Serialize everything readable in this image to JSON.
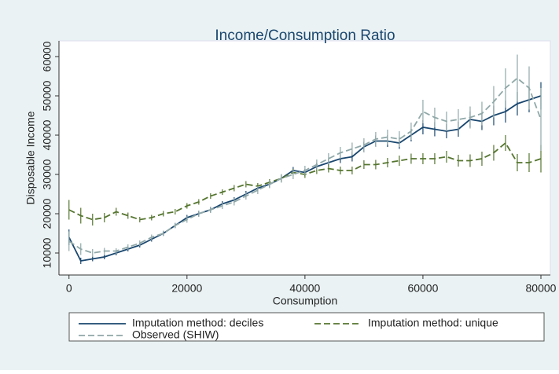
{
  "chart_data": {
    "type": "line",
    "title": "Income/Consumption Ratio",
    "x_label": "Consumption",
    "y_label": "Disposable Income",
    "x": [
      0,
      2000,
      4000,
      6000,
      8000,
      10000,
      12000,
      14000,
      16000,
      18000,
      20000,
      22000,
      24000,
      26000,
      28000,
      30000,
      32000,
      34000,
      36000,
      38000,
      40000,
      42000,
      44000,
      46000,
      48000,
      50000,
      52000,
      54000,
      56000,
      58000,
      60000,
      62000,
      64000,
      66000,
      68000,
      70000,
      72000,
      74000,
      76000,
      78000,
      80000
    ],
    "series": [
      {
        "name": "Imputation method: deciles",
        "color": "#1a476f",
        "dash": "none",
        "values": [
          14000,
          8000,
          8500,
          9000,
          10000,
          11000,
          12000,
          13500,
          15000,
          17000,
          19000,
          20000,
          21000,
          22500,
          23500,
          25000,
          26500,
          27500,
          29000,
          31000,
          30500,
          32000,
          33000,
          34000,
          34500,
          37000,
          38500,
          38500,
          38000,
          40000,
          42000,
          41500,
          41000,
          41500,
          44000,
          43500,
          45000,
          46000,
          48000,
          49000,
          50000
        ],
        "errors": [
          2000,
          800,
          600,
          600,
          600,
          600,
          600,
          600,
          600,
          600,
          700,
          700,
          700,
          700,
          700,
          800,
          800,
          800,
          900,
          900,
          900,
          1000,
          1000,
          1100,
          1200,
          1300,
          1400,
          1500,
          1500,
          1600,
          1800,
          1800,
          1800,
          1900,
          2000,
          2200,
          2500,
          2800,
          3000,
          3200,
          3500
        ]
      },
      {
        "name": "Imputation method: unique",
        "color": "#55752f",
        "dash": "8,4",
        "values": [
          21000,
          19500,
          18500,
          19000,
          20500,
          19500,
          18500,
          19000,
          20000,
          20500,
          22000,
          23000,
          24500,
          25500,
          26500,
          27500,
          27000,
          28000,
          29000,
          30500,
          30000,
          31000,
          31500,
          31000,
          31000,
          32500,
          32500,
          33000,
          33500,
          34000,
          34000,
          34000,
          34500,
          33500,
          33500,
          34000,
          35500,
          38000,
          33000,
          33000,
          34000
        ],
        "errors": [
          2500,
          2000,
          1500,
          1200,
          1000,
          800,
          700,
          700,
          700,
          700,
          700,
          700,
          700,
          700,
          800,
          800,
          800,
          800,
          900,
          900,
          900,
          900,
          1000,
          1000,
          1000,
          1100,
          1200,
          1200,
          1300,
          1300,
          1400,
          1400,
          1500,
          1500,
          1600,
          1800,
          2000,
          2000,
          2200,
          2400,
          3500
        ]
      },
      {
        "name": "Observed (SHIW)",
        "color": "#90a8a8",
        "dash": "8,4",
        "values": [
          13000,
          11000,
          10000,
          10500,
          10500,
          11500,
          12500,
          14000,
          15000,
          17000,
          18500,
          20000,
          21000,
          22000,
          23000,
          24500,
          26000,
          27500,
          29000,
          30000,
          31000,
          32500,
          34000,
          35500,
          36500,
          37500,
          39000,
          39500,
          39000,
          41000,
          46000,
          44500,
          43500,
          44000,
          44500,
          45500,
          48500,
          52000,
          54500,
          52000,
          44000
        ],
        "errors": [
          2500,
          1500,
          1000,
          800,
          700,
          700,
          700,
          700,
          700,
          700,
          800,
          800,
          800,
          800,
          900,
          900,
          1000,
          1000,
          1100,
          1200,
          1200,
          1300,
          1400,
          1500,
          1600,
          1700,
          1800,
          1900,
          2000,
          2200,
          3000,
          2500,
          2500,
          2600,
          2800,
          3000,
          4000,
          5000,
          6000,
          5500,
          8000
        ]
      }
    ],
    "xlim": [
      -1700,
      81600
    ],
    "ylim": [
      4400,
      64000
    ],
    "xticks": [
      0,
      20000,
      40000,
      60000,
      80000
    ],
    "yticks": [
      10000,
      20000,
      30000,
      40000,
      50000,
      60000
    ],
    "legend": "bottom"
  }
}
